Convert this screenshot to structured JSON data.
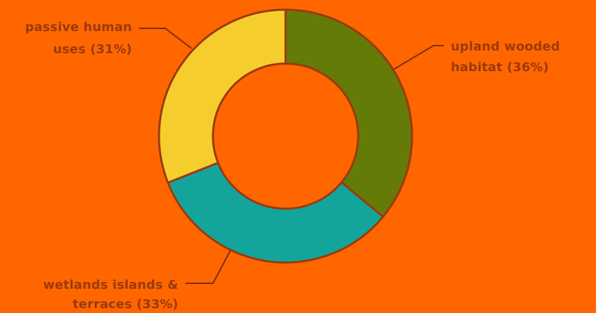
{
  "colors": {
    "background": "#FF6600",
    "outline": "#9A3A0E",
    "label_text": "#9A3A0E",
    "leader_line": "#7A3010"
  },
  "chart_data": {
    "type": "pie",
    "donut": true,
    "slices": [
      {
        "label_lines": [
          "upland wooded",
          "habitat (36%)"
        ],
        "value": 36,
        "color": "#647B08"
      },
      {
        "label_lines": [
          "wetlands islands &",
          "terraces (33%)"
        ],
        "value": 33,
        "color": "#13A59C"
      },
      {
        "label_lines": [
          "passive human",
          "uses (31%)"
        ],
        "value": 31,
        "color": "#F5CD2D"
      }
    ]
  }
}
